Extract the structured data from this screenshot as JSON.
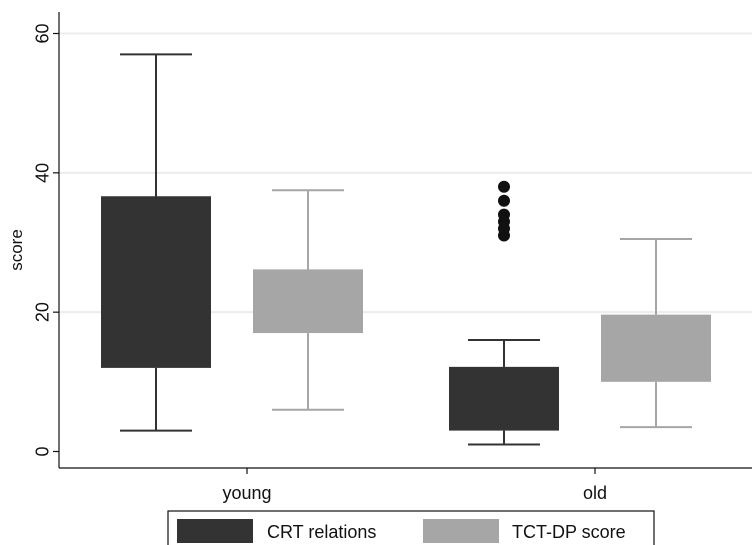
{
  "chart_data": {
    "type": "boxplot",
    "title": "",
    "xlabel": "",
    "ylabel": "score",
    "ylim": [
      0,
      62
    ],
    "yticks": [
      0,
      20,
      40,
      60
    ],
    "categories": [
      "young",
      "old"
    ],
    "grid": true,
    "legend_position": "bottom",
    "series": [
      {
        "name": "CRT relations",
        "color": "#333333",
        "boxes": [
          {
            "category": "young",
            "min": 3,
            "q1": 12,
            "median": 36.5,
            "q3": 36.5,
            "max": 57,
            "outliers": []
          },
          {
            "category": "old",
            "min": 1,
            "q1": 3,
            "median": 12,
            "q3": 12,
            "max": 16,
            "outliers": [
              31,
              32,
              33,
              34,
              36,
              38
            ]
          }
        ]
      },
      {
        "name": "TCT-DP score",
        "color": "#a6a6a6",
        "boxes": [
          {
            "category": "young",
            "min": 6,
            "q1": 17,
            "median": 26,
            "q3": 26,
            "max": 37.5,
            "outliers": []
          },
          {
            "category": "old",
            "min": 3.5,
            "q1": 10,
            "median": 19.5,
            "q3": 19.5,
            "max": 30.5,
            "outliers": []
          }
        ]
      }
    ]
  }
}
